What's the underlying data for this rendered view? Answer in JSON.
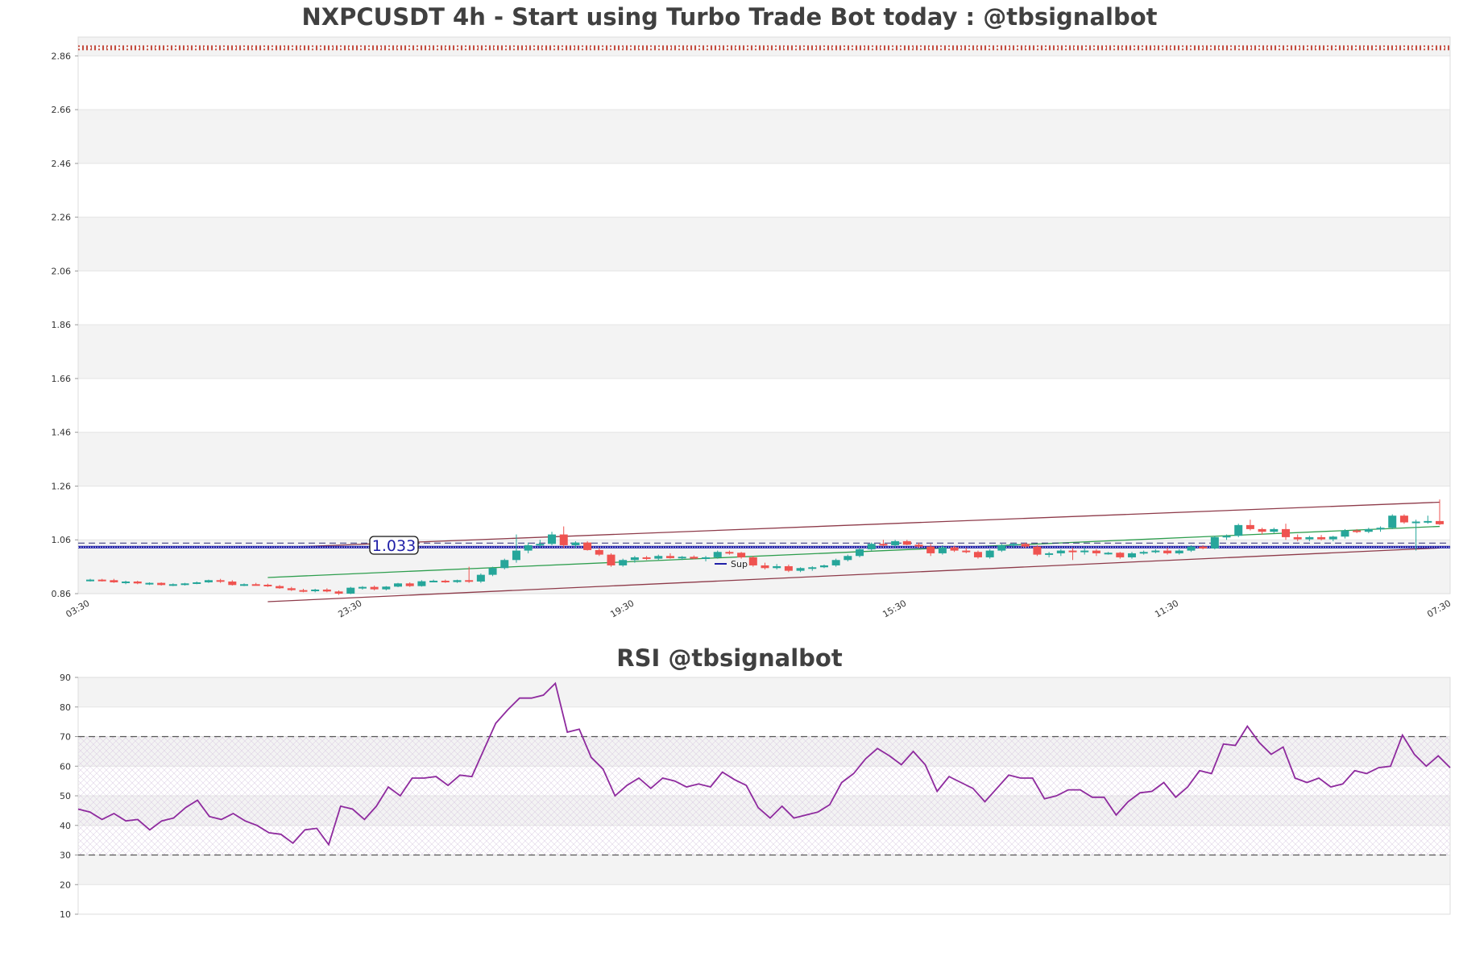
{
  "chart_data": [
    {
      "type": "candlestick",
      "title": "NXPCUSDT 4h - Start using Turbo Trade Bot today : @tbsignalbot",
      "ylim": [
        0.86,
        2.93
      ],
      "y_ticks": [
        "0.86",
        "1.06",
        "1.26",
        "1.46",
        "1.66",
        "1.86",
        "2.06",
        "2.26",
        "2.46",
        "2.66",
        "2.86"
      ],
      "x_ticks": [
        "03:30",
        "23:30",
        "19:30",
        "15:30",
        "11:30",
        "07:30"
      ],
      "x_tick_candle_index": [
        0,
        23,
        46,
        69,
        92,
        115
      ],
      "resistance_level": 2.89,
      "support_level": 1.033,
      "support_label": "1.033",
      "legend_entry": "Sup",
      "channel_upper": {
        "start_index": 15,
        "start": 1.03,
        "end_index": 114,
        "end": 1.2
      },
      "channel_lower": {
        "start_index": 15,
        "start": 0.83,
        "end_index": 114,
        "end": 1.03
      },
      "channel_mid": {
        "start_index": 15,
        "start": 0.92,
        "end_index": 114,
        "end": 1.11
      },
      "grid": true,
      "candles": [
        [
          0.91,
          0.915,
          0.905,
          0.912
        ],
        [
          0.912,
          0.915,
          0.905,
          0.91
        ],
        [
          0.91,
          0.915,
          0.9,
          0.902
        ],
        [
          0.902,
          0.908,
          0.895,
          0.905
        ],
        [
          0.905,
          0.908,
          0.895,
          0.898
        ],
        [
          0.898,
          0.902,
          0.892,
          0.9
        ],
        [
          0.9,
          0.902,
          0.89,
          0.892
        ],
        [
          0.892,
          0.898,
          0.888,
          0.895
        ],
        [
          0.895,
          0.9,
          0.89,
          0.898
        ],
        [
          0.898,
          0.905,
          0.895,
          0.902
        ],
        [
          0.902,
          0.912,
          0.9,
          0.91
        ],
        [
          0.91,
          0.915,
          0.9,
          0.905
        ],
        [
          0.905,
          0.91,
          0.89,
          0.892
        ],
        [
          0.892,
          0.898,
          0.888,
          0.895
        ],
        [
          0.895,
          0.9,
          0.89,
          0.893
        ],
        [
          0.893,
          0.897,
          0.885,
          0.888
        ],
        [
          0.888,
          0.892,
          0.878,
          0.88
        ],
        [
          0.88,
          0.885,
          0.87,
          0.873
        ],
        [
          0.873,
          0.878,
          0.865,
          0.87
        ],
        [
          0.87,
          0.878,
          0.865,
          0.875
        ],
        [
          0.875,
          0.88,
          0.865,
          0.868
        ],
        [
          0.868,
          0.872,
          0.855,
          0.86
        ],
        [
          0.86,
          0.885,
          0.858,
          0.882
        ],
        [
          0.882,
          0.888,
          0.875,
          0.885
        ],
        [
          0.885,
          0.89,
          0.872,
          0.876
        ],
        [
          0.876,
          0.888,
          0.872,
          0.886
        ],
        [
          0.886,
          0.9,
          0.884,
          0.898
        ],
        [
          0.898,
          0.902,
          0.885,
          0.888
        ],
        [
          0.888,
          0.91,
          0.886,
          0.906
        ],
        [
          0.906,
          0.912,
          0.902,
          0.908
        ],
        [
          0.908,
          0.912,
          0.9,
          0.903
        ],
        [
          0.903,
          0.912,
          0.9,
          0.91
        ],
        [
          0.91,
          0.96,
          0.9,
          0.905
        ],
        [
          0.905,
          0.935,
          0.9,
          0.93
        ],
        [
          0.93,
          0.96,
          0.925,
          0.955
        ],
        [
          0.955,
          0.99,
          0.95,
          0.985
        ],
        [
          0.985,
          1.08,
          0.975,
          1.02
        ],
        [
          1.02,
          1.05,
          1.01,
          1.04
        ],
        [
          1.04,
          1.06,
          1.03,
          1.045
        ],
        [
          1.045,
          1.09,
          1.04,
          1.08
        ],
        [
          1.08,
          1.11,
          1.03,
          1.04
        ],
        [
          1.04,
          1.055,
          1.03,
          1.05
        ],
        [
          1.05,
          1.055,
          1.02,
          1.022
        ],
        [
          1.022,
          1.03,
          1.0,
          1.005
        ],
        [
          1.005,
          1.01,
          0.96,
          0.965
        ],
        [
          0.965,
          0.99,
          0.96,
          0.985
        ],
        [
          0.985,
          1.0,
          0.975,
          0.995
        ],
        [
          0.995,
          1.0,
          0.985,
          0.99
        ],
        [
          0.99,
          1.005,
          0.985,
          1.0
        ],
        [
          1.0,
          1.01,
          0.99,
          0.992
        ],
        [
          0.992,
          1.0,
          0.985,
          0.997
        ],
        [
          0.997,
          1.002,
          0.988,
          0.99
        ],
        [
          0.99,
          1.0,
          0.98,
          0.995
        ],
        [
          0.995,
          1.02,
          0.99,
          1.015
        ],
        [
          1.015,
          1.02,
          1.005,
          1.012
        ],
        [
          1.012,
          1.015,
          0.99,
          0.995
        ],
        [
          0.995,
          1.0,
          0.96,
          0.965
        ],
        [
          0.965,
          0.975,
          0.95,
          0.955
        ],
        [
          0.955,
          0.97,
          0.95,
          0.962
        ],
        [
          0.962,
          0.968,
          0.94,
          0.945
        ],
        [
          0.945,
          0.958,
          0.94,
          0.955
        ],
        [
          0.955,
          0.962,
          0.945,
          0.958
        ],
        [
          0.958,
          0.968,
          0.955,
          0.965
        ],
        [
          0.965,
          0.99,
          0.96,
          0.985
        ],
        [
          0.985,
          1.005,
          0.98,
          1.0
        ],
        [
          1.0,
          1.03,
          0.995,
          1.025
        ],
        [
          1.025,
          1.05,
          1.02,
          1.045
        ],
        [
          1.045,
          1.06,
          1.035,
          1.04
        ],
        [
          1.04,
          1.06,
          1.03,
          1.055
        ],
        [
          1.055,
          1.06,
          1.04,
          1.042
        ],
        [
          1.042,
          1.05,
          1.03,
          1.035
        ],
        [
          1.035,
          1.045,
          1.0,
          1.01
        ],
        [
          1.01,
          1.04,
          1.005,
          1.032
        ],
        [
          1.032,
          1.038,
          1.015,
          1.02
        ],
        [
          1.02,
          1.03,
          1.01,
          1.015
        ],
        [
          1.015,
          1.02,
          0.99,
          0.995
        ],
        [
          0.995,
          1.025,
          0.99,
          1.02
        ],
        [
          1.02,
          1.045,
          1.015,
          1.04
        ],
        [
          1.04,
          1.05,
          1.03,
          1.045
        ],
        [
          1.045,
          1.05,
          1.03,
          1.035
        ],
        [
          1.035,
          1.04,
          1.0,
          1.005
        ],
        [
          1.005,
          1.015,
          0.995,
          1.01
        ],
        [
          1.01,
          1.025,
          1.0,
          1.02
        ],
        [
          1.02,
          1.03,
          0.985,
          1.015
        ],
        [
          1.015,
          1.03,
          1.005,
          1.02
        ],
        [
          1.02,
          1.025,
          1.0,
          1.01
        ],
        [
          1.01,
          1.015,
          1.005,
          1.012
        ],
        [
          1.012,
          1.015,
          0.99,
          0.995
        ],
        [
          0.995,
          1.015,
          0.99,
          1.01
        ],
        [
          1.01,
          1.02,
          1.005,
          1.015
        ],
        [
          1.015,
          1.025,
          1.01,
          1.02
        ],
        [
          1.02,
          1.03,
          1.005,
          1.01
        ],
        [
          1.01,
          1.025,
          1.005,
          1.02
        ],
        [
          1.02,
          1.04,
          1.015,
          1.035
        ],
        [
          1.035,
          1.04,
          1.025,
          1.028
        ],
        [
          1.028,
          1.075,
          1.025,
          1.07
        ],
        [
          1.07,
          1.08,
          1.06,
          1.075
        ],
        [
          1.075,
          1.12,
          1.07,
          1.115
        ],
        [
          1.115,
          1.135,
          1.095,
          1.1
        ],
        [
          1.1,
          1.105,
          1.08,
          1.09
        ],
        [
          1.09,
          1.105,
          1.085,
          1.1
        ],
        [
          1.1,
          1.12,
          1.06,
          1.07
        ],
        [
          1.07,
          1.08,
          1.055,
          1.062
        ],
        [
          1.062,
          1.075,
          1.055,
          1.07
        ],
        [
          1.07,
          1.078,
          1.058,
          1.062
        ],
        [
          1.062,
          1.075,
          1.055,
          1.072
        ],
        [
          1.072,
          1.1,
          1.065,
          1.095
        ],
        [
          1.095,
          1.1,
          1.085,
          1.09
        ],
        [
          1.09,
          1.105,
          1.085,
          1.1
        ],
        [
          1.1,
          1.11,
          1.09,
          1.105
        ],
        [
          1.105,
          1.155,
          1.1,
          1.15
        ],
        [
          1.15,
          1.155,
          1.12,
          1.125
        ],
        [
          1.125,
          1.135,
          1.02,
          1.128
        ],
        [
          1.128,
          1.15,
          1.12,
          1.13
        ],
        [
          1.13,
          1.21,
          1.115,
          1.118
        ]
      ]
    },
    {
      "type": "line",
      "title": "RSI @tbsignalbot",
      "ylim": [
        10,
        90
      ],
      "y_ticks": [
        "10",
        "20",
        "30",
        "40",
        "50",
        "60",
        "70",
        "80",
        "90"
      ],
      "overbought": 70,
      "oversold": 30,
      "grid": true,
      "values": [
        45.5,
        44.5,
        42,
        44,
        41.5,
        42,
        38.5,
        41.5,
        42.5,
        46,
        48.5,
        43,
        42,
        44,
        41.5,
        40,
        37.5,
        37,
        34,
        38.5,
        39,
        33.5,
        46.5,
        45.5,
        42,
        46.5,
        53,
        50,
        56,
        56,
        56.5,
        53.5,
        57,
        56.5,
        65.5,
        74.5,
        79,
        83,
        83,
        84,
        88,
        71.5,
        72.5,
        63,
        59,
        50,
        53.5,
        56,
        52.5,
        56,
        55,
        53,
        54,
        53,
        58,
        55.5,
        53.5,
        46,
        42.5,
        46.5,
        42.5,
        43.5,
        44.5,
        47,
        54.5,
        57.5,
        62.5,
        66,
        63.5,
        60.5,
        65,
        60.5,
        51.5,
        56.5,
        54.5,
        52.5,
        48,
        52.5,
        57,
        56,
        56,
        49,
        50,
        52,
        52,
        49.5,
        49.5,
        43.5,
        48,
        51,
        51.5,
        54.5,
        49.5,
        53,
        58.5,
        57.5,
        67.5,
        67,
        73.5,
        68,
        64,
        66.5,
        56,
        54.5,
        56,
        53,
        54,
        58.5,
        57.5,
        59.5,
        60,
        70.5,
        64,
        60,
        63.5,
        59.5
      ]
    }
  ]
}
